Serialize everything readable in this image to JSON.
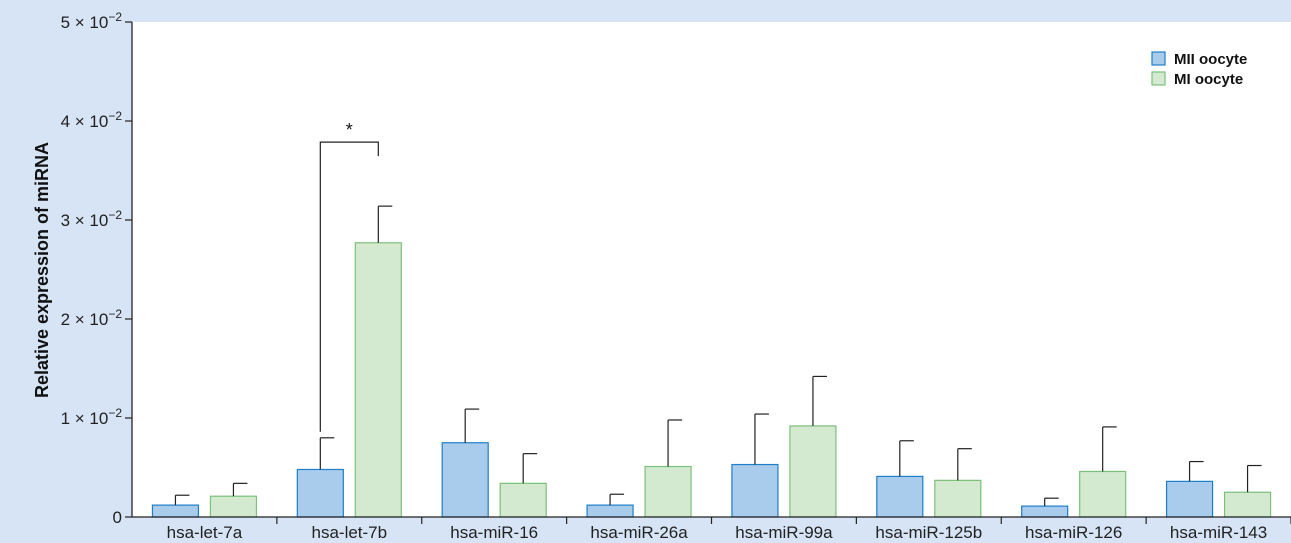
{
  "chart_data": {
    "type": "bar",
    "title": "",
    "xlabel": "",
    "ylabel": "Relative expression of miRNA",
    "ylim": [
      0,
      0.05
    ],
    "yticks": [
      {
        "value": 0,
        "label": "0",
        "mant": "",
        "exp": ""
      },
      {
        "value": 0.01,
        "label": "1×10⁻²",
        "mant": "1 × 10",
        "exp": "−2"
      },
      {
        "value": 0.02,
        "label": "2×10⁻²",
        "mant": "2 × 10",
        "exp": "−2"
      },
      {
        "value": 0.03,
        "label": "3×10⁻²",
        "mant": "3 × 10",
        "exp": "−2"
      },
      {
        "value": 0.04,
        "label": "4×10⁻²",
        "mant": "4 × 10",
        "exp": "−2"
      },
      {
        "value": 0.05,
        "label": "5×10⁻²",
        "mant": "5 × 10",
        "exp": "−2"
      }
    ],
    "categories": [
      "hsa-let-7a",
      "hsa-let-7b",
      "hsa-miR-16",
      "hsa-miR-26a",
      "hsa-miR-99a",
      "hsa-miR-125b",
      "hsa-miR-126",
      "hsa-miR-143"
    ],
    "series": [
      {
        "name": "MII oocyte",
        "fill": "#a9cbec",
        "stroke": "#1e7ec8",
        "values": [
          0.0012,
          0.0048,
          0.0075,
          0.0012,
          0.0053,
          0.0041,
          0.0011,
          0.0036
        ],
        "errors": [
          0.001,
          0.0032,
          0.0034,
          0.0011,
          0.0051,
          0.0036,
          0.0008,
          0.002
        ]
      },
      {
        "name": "MI oocyte",
        "fill": "#d3ead1",
        "stroke": "#7cc07a",
        "values": [
          0.0021,
          0.0277,
          0.0034,
          0.0051,
          0.0092,
          0.0037,
          0.0046,
          0.0025
        ],
        "errors": [
          0.0013,
          0.0037,
          0.003,
          0.0047,
          0.005,
          0.0032,
          0.0045,
          0.0027
        ]
      }
    ],
    "annotations": [
      {
        "category_index": 1,
        "text": "*"
      }
    ],
    "legend_position": "top-right",
    "grid": false
  }
}
